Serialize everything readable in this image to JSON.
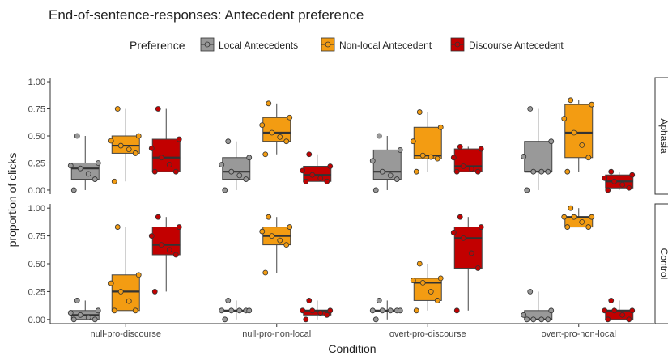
{
  "chart_data": {
    "type": "boxplot",
    "title": "End-of-sentence-responses: Antecedent preference",
    "xlabel": "Condition",
    "ylabel": "proportion of clicks",
    "ylim": [
      0,
      1
    ],
    "yticks": [
      "0.00",
      "0.25",
      "0.50",
      "0.75",
      "1.00"
    ],
    "categories": [
      "null-pro-discourse",
      "null-pro-non-local",
      "overt-pro-discourse",
      "overt-pro-non-local"
    ],
    "legend": {
      "title": "Preference",
      "placement": "top",
      "entries": [
        "Local Antecedents",
        "Non-local Antecedent",
        "Discourse Antecedent"
      ]
    },
    "colors": {
      "Local Antecedents": "#999999",
      "Non-local Antecedent": "#f39c12",
      "Discourse Antecedent": "#c20000"
    },
    "panels": [
      {
        "label": "Aphasia",
        "series": [
          {
            "name": "Local Antecedents",
            "boxes": [
              {
                "min": 0.0,
                "q1": 0.1,
                "median": 0.2,
                "q3": 0.25,
                "max": 0.5
              },
              {
                "min": 0.0,
                "q1": 0.1,
                "median": 0.17,
                "q3": 0.3,
                "max": 0.45
              },
              {
                "min": 0.0,
                "q1": 0.1,
                "median": 0.17,
                "q3": 0.37,
                "max": 0.5
              },
              {
                "min": 0.0,
                "q1": 0.17,
                "median": 0.17,
                "q3": 0.45,
                "max": 0.75
              }
            ]
          },
          {
            "name": "Non-local Antecedent",
            "boxes": [
              {
                "min": 0.08,
                "q1": 0.34,
                "median": 0.41,
                "q3": 0.5,
                "max": 0.75
              },
              {
                "min": 0.33,
                "q1": 0.45,
                "median": 0.53,
                "q3": 0.67,
                "max": 0.8
              },
              {
                "min": 0.17,
                "q1": 0.29,
                "median": 0.32,
                "q3": 0.58,
                "max": 0.72
              },
              {
                "min": 0.17,
                "q1": 0.3,
                "median": 0.53,
                "q3": 0.79,
                "max": 0.83
              }
            ]
          },
          {
            "name": "Discourse Antecedent",
            "boxes": [
              {
                "min": 0.17,
                "q1": 0.17,
                "median": 0.3,
                "q3": 0.47,
                "max": 0.75
              },
              {
                "min": 0.08,
                "q1": 0.08,
                "median": 0.14,
                "q3": 0.22,
                "max": 0.33
              },
              {
                "min": 0.17,
                "q1": 0.17,
                "median": 0.22,
                "q3": 0.38,
                "max": 0.4
              },
              {
                "min": 0.0,
                "q1": 0.02,
                "median": 0.08,
                "q3": 0.14,
                "max": 0.17
              }
            ]
          }
        ]
      },
      {
        "label": "Control",
        "series": [
          {
            "name": "Local Antecedents",
            "boxes": [
              {
                "min": 0.0,
                "q1": 0.0,
                "median": 0.04,
                "q3": 0.08,
                "max": 0.17
              },
              {
                "min": 0.0,
                "q1": 0.08,
                "median": 0.08,
                "q3": 0.08,
                "max": 0.17
              },
              {
                "min": 0.0,
                "q1": 0.08,
                "median": 0.08,
                "q3": 0.08,
                "max": 0.17
              },
              {
                "min": 0.0,
                "q1": 0.0,
                "median": 0.0,
                "q3": 0.08,
                "max": 0.25
              }
            ]
          },
          {
            "name": "Non-local Antecedent",
            "boxes": [
              {
                "min": 0.08,
                "q1": 0.08,
                "median": 0.25,
                "q3": 0.4,
                "max": 0.83
              },
              {
                "min": 0.42,
                "q1": 0.67,
                "median": 0.75,
                "q3": 0.83,
                "max": 0.92
              },
              {
                "min": 0.08,
                "q1": 0.17,
                "median": 0.33,
                "q3": 0.37,
                "max": 0.5
              },
              {
                "min": 0.83,
                "q1": 0.83,
                "median": 0.92,
                "q3": 0.92,
                "max": 1.0
              }
            ]
          },
          {
            "name": "Discourse Antecedent",
            "boxes": [
              {
                "min": 0.25,
                "q1": 0.58,
                "median": 0.67,
                "q3": 0.83,
                "max": 0.92
              },
              {
                "min": 0.0,
                "q1": 0.04,
                "median": 0.08,
                "q3": 0.08,
                "max": 0.17
              },
              {
                "min": 0.08,
                "q1": 0.46,
                "median": 0.73,
                "q3": 0.83,
                "max": 0.92
              },
              {
                "min": 0.0,
                "q1": 0.0,
                "median": 0.08,
                "q3": 0.08,
                "max": 0.17
              }
            ]
          }
        ]
      }
    ]
  }
}
